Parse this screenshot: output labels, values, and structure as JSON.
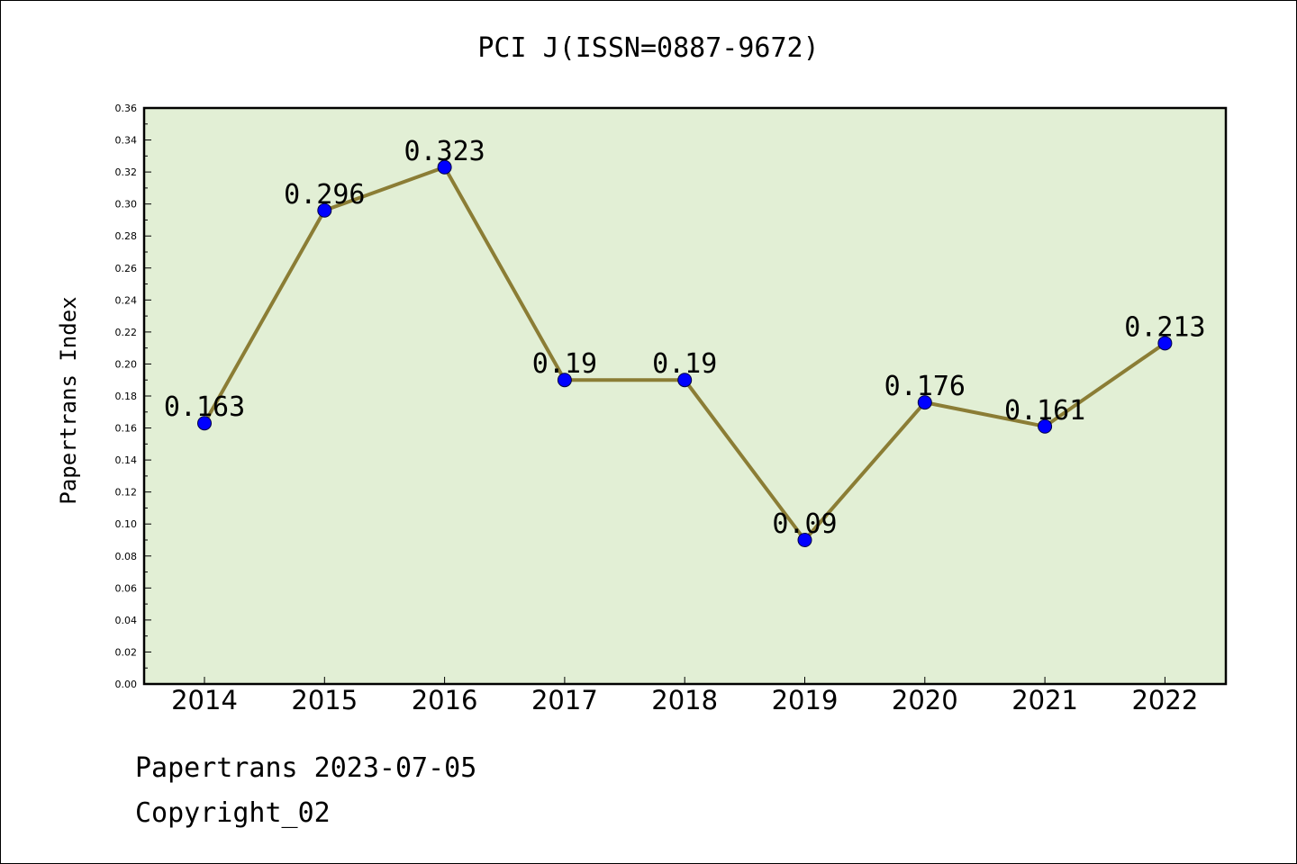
{
  "chart_data": {
    "type": "line",
    "title": "PCI J(ISSN=0887-9672)",
    "xlabel": "",
    "ylabel": "Papertrans Index",
    "categories": [
      "2014",
      "2015",
      "2016",
      "2017",
      "2018",
      "2019",
      "2020",
      "2021",
      "2022"
    ],
    "values": [
      0.163,
      0.296,
      0.323,
      0.19,
      0.19,
      0.09,
      0.176,
      0.161,
      0.213
    ],
    "value_labels": [
      "0.163",
      "0.296",
      "0.323",
      "0.19",
      "0.19",
      "0.09",
      "0.176",
      "0.161",
      "0.213"
    ],
    "ylim": [
      0,
      0.36
    ],
    "yticks": [
      "0.00",
      "0.02",
      "0.04",
      "0.06",
      "0.08",
      "0.10",
      "0.12",
      "0.14",
      "0.16",
      "0.18",
      "0.20",
      "0.22",
      "0.24",
      "0.26",
      "0.28",
      "0.30",
      "0.32",
      "0.34",
      "0.36"
    ],
    "grid": false,
    "colors": {
      "plot_background": "#e2efd5",
      "line": "#8b7d35",
      "marker": "#0000ff"
    }
  },
  "footer": {
    "date_line": "Papertrans 2023-07-05",
    "copyright": "Copyright_02"
  }
}
